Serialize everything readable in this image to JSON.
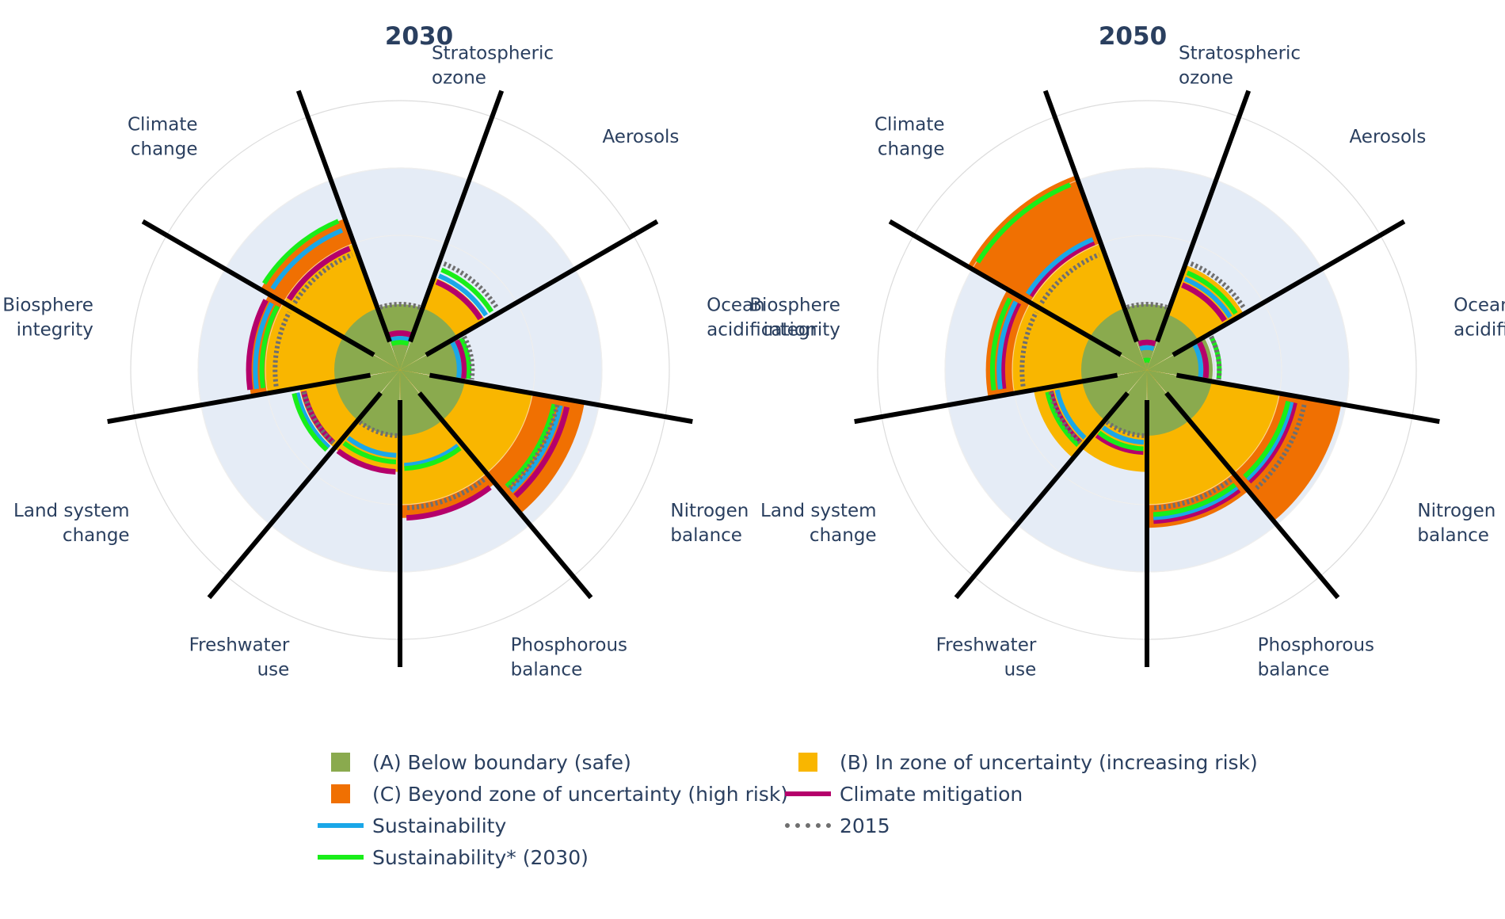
{
  "colors": {
    "safe": "#8aaa4e",
    "uncertainty": "#f9b600",
    "high_risk": "#f07002",
    "climate_mitigation": "#b5006b",
    "sustainability": "#1aa7e8",
    "sustainability2030": "#19ee19",
    "baseline2015": "#6f6f6f",
    "panel": "#e5ecf6",
    "text": "#2a3f5f"
  },
  "chart_data": [
    {
      "type": "polar-bar",
      "title": "2030",
      "categories": [
        "Stratospheric ozone",
        "Aerosols",
        "Ocean acidification",
        "Nitrogen balance",
        "Phosphorous balance",
        "Freshwater use",
        "Land system change",
        "Biosphere integrity",
        "Climate change"
      ],
      "category_lines": [
        [
          "Stratospheric",
          "ozone"
        ],
        [
          "Aerosols"
        ],
        [
          "Ocean",
          "acidification"
        ],
        [
          "Nitrogen",
          "balance"
        ],
        [
          "Phosphorous",
          "balance"
        ],
        [
          "Freshwater",
          "use"
        ],
        [
          "Land system",
          "change"
        ],
        [
          "Biosphere",
          "integrity"
        ],
        [
          "Climate",
          "change"
        ]
      ],
      "radial_range": [
        0,
        3.5
      ],
      "zones": {
        "safe": [
          1,
          1,
          1,
          1,
          1,
          1,
          1,
          1,
          1
        ],
        "uncertainty": [
          0.29,
          1.5,
          0.95,
          2.05,
          2.05,
          1.55,
          1.55,
          2.05,
          2.05
        ],
        "high_risk": [
          0,
          0,
          0,
          2.85,
          2.25,
          0,
          0,
          2.3,
          2.45
        ]
      },
      "series": [
        {
          "name": "Climate mitigation",
          "values": [
            0.56,
            1.45,
            0.98,
            2.6,
            2.25,
            1.55,
            1.5,
            2.3,
            2.0
          ]
        },
        {
          "name": "Sustainability",
          "values": [
            0.48,
            1.55,
            0.9,
            2.5,
            1.45,
            1.3,
            1.6,
            2.2,
            2.3
          ]
        },
        {
          "name": "Sustainability* (2030)",
          "values": [
            0.42,
            1.65,
            1.05,
            2.4,
            1.5,
            1.4,
            1.65,
            2.1,
            2.45
          ]
        },
        {
          "name": "2015",
          "values": [
            1.0,
            1.75,
            1.1,
            2.45,
            2.1,
            1.0,
            1.5,
            1.9,
            1.9
          ]
        }
      ]
    },
    {
      "type": "polar-bar",
      "title": "2050",
      "categories": [
        "Stratospheric ozone",
        "Aerosols",
        "Ocean acidification",
        "Nitrogen balance",
        "Phosphorous balance",
        "Freshwater use",
        "Land system change",
        "Biosphere integrity",
        "Climate change"
      ],
      "category_lines": [
        [
          "Stratospheric",
          "ozone"
        ],
        [
          "Aerosols"
        ],
        [
          "Ocean",
          "acidificat"
        ],
        [
          "Nitrogen",
          "balance"
        ],
        [
          "Phosphorous",
          "balance"
        ],
        [
          "Freshwater",
          "use"
        ],
        [
          "Land system",
          "change"
        ],
        [
          "Biosphere",
          "integrity"
        ],
        [
          "Climate",
          "change"
        ]
      ],
      "radial_range": [
        0,
        3.5
      ],
      "zones": {
        "safe": [
          1,
          0.9,
          1,
          1,
          1,
          1,
          1,
          1,
          1
        ],
        "uncertainty": [
          0.45,
          1.7,
          0.95,
          2.05,
          2.05,
          1.55,
          1.75,
          2.05,
          2.05
        ],
        "high_risk": [
          0,
          0,
          0,
          3.0,
          2.4,
          0,
          0,
          2.45,
          3.15
        ]
      },
      "series": [
        {
          "name": "Climate mitigation",
          "values": [
            0.42,
            1.4,
            0.9,
            2.3,
            2.3,
            1.25,
            1.5,
            2.2,
            2.1
          ]
        },
        {
          "name": "Sustainability",
          "values": [
            0.34,
            1.5,
            0.82,
            2.25,
            2.25,
            1.1,
            1.4,
            2.25,
            2.15
          ]
        },
        {
          "name": "Sustainability* (2030)",
          "values": [
            0.15,
            1.6,
            1.1,
            2.2,
            2.2,
            1.2,
            1.55,
            2.35,
            3.05
          ]
        },
        {
          "name": "2015",
          "values": [
            1.0,
            1.75,
            1.1,
            2.45,
            2.1,
            1.0,
            1.5,
            1.9,
            1.9
          ]
        }
      ]
    }
  ],
  "legend": {
    "items": [
      {
        "label": "(A) Below boundary (safe)",
        "kind": "square",
        "color": "#8aaa4e"
      },
      {
        "label": "(B) In zone of uncertainty (increasing risk)",
        "kind": "square",
        "color": "#f9b600"
      },
      {
        "label": "(C) Beyond zone of uncertainty (high risk)",
        "kind": "square",
        "color": "#f07002"
      },
      {
        "label": "Climate mitigation",
        "kind": "line",
        "color": "#b5006b"
      },
      {
        "label": "Sustainability",
        "kind": "line",
        "color": "#1aa7e8"
      },
      {
        "label": "2015",
        "kind": "dotted",
        "color": "#6f6f6f"
      },
      {
        "label": "Sustainability* (2030)",
        "kind": "line",
        "color": "#19ee19"
      }
    ]
  }
}
